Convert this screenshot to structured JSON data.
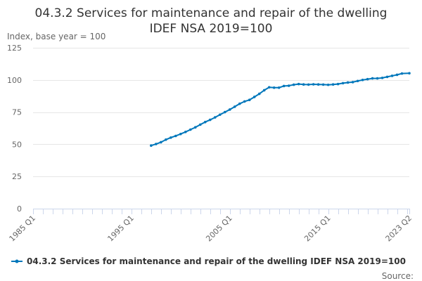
{
  "chart_data": {
    "type": "line",
    "title_line1": "04.3.2 Services for maintenance and repair of the dwelling",
    "title_line2": "IDEF NSA 2019=100",
    "unit_label": "Index, base year = 100",
    "source_label": "Source:",
    "ylim": [
      0,
      125
    ],
    "y_ticks": [
      0,
      25,
      50,
      75,
      100,
      125
    ],
    "x_range": [
      "1985 Q1",
      "2023 Q2"
    ],
    "x_tick_labels": [
      "1985 Q1",
      "1995 Q1",
      "2005 Q1",
      "2015 Q1",
      "2023 Q2"
    ],
    "grid": "horizontal",
    "legend_position": "bottom",
    "color": "#0077bb",
    "series": [
      {
        "name": "04.3.2 Services for maintenance and repair of the dwelling IDEF NSA 2019=100",
        "points": [
          [
            "1997 Q1",
            49.0
          ],
          [
            "1997 Q3",
            50.2
          ],
          [
            "1998 Q1",
            51.6
          ],
          [
            "1998 Q3",
            53.6
          ],
          [
            "1999 Q1",
            55.2
          ],
          [
            "1999 Q3",
            56.5
          ],
          [
            "2000 Q1",
            58.0
          ],
          [
            "2000 Q3",
            59.6
          ],
          [
            "2001 Q1",
            61.4
          ],
          [
            "2001 Q3",
            63.2
          ],
          [
            "2002 Q1",
            65.3
          ],
          [
            "2002 Q3",
            67.3
          ],
          [
            "2003 Q1",
            69.0
          ],
          [
            "2003 Q3",
            70.9
          ],
          [
            "2004 Q1",
            73.0
          ],
          [
            "2004 Q3",
            75.0
          ],
          [
            "2005 Q1",
            77.0
          ],
          [
            "2005 Q3",
            79.2
          ],
          [
            "2006 Q1",
            81.5
          ],
          [
            "2006 Q3",
            83.3
          ],
          [
            "2007 Q1",
            84.5
          ],
          [
            "2007 Q3",
            86.8
          ],
          [
            "2008 Q1",
            89.2
          ],
          [
            "2008 Q3",
            92.0
          ],
          [
            "2009 Q1",
            94.3
          ],
          [
            "2009 Q3",
            94.0
          ],
          [
            "2010 Q1",
            94.0
          ],
          [
            "2010 Q3",
            95.3
          ],
          [
            "2011 Q1",
            95.5
          ],
          [
            "2011 Q3",
            96.3
          ],
          [
            "2012 Q1",
            96.8
          ],
          [
            "2012 Q3",
            96.5
          ],
          [
            "2013 Q1",
            96.4
          ],
          [
            "2013 Q3",
            96.6
          ],
          [
            "2014 Q1",
            96.5
          ],
          [
            "2014 Q3",
            96.4
          ],
          [
            "2015 Q1",
            96.2
          ],
          [
            "2015 Q3",
            96.5
          ],
          [
            "2016 Q1",
            96.8
          ],
          [
            "2016 Q3",
            97.5
          ],
          [
            "2017 Q1",
            98.0
          ],
          [
            "2017 Q3",
            98.3
          ],
          [
            "2018 Q1",
            99.2
          ],
          [
            "2018 Q3",
            100.0
          ],
          [
            "2019 Q1",
            100.6
          ],
          [
            "2019 Q3",
            101.2
          ],
          [
            "2020 Q1",
            101.2
          ],
          [
            "2020 Q3",
            101.6
          ],
          [
            "2021 Q1",
            102.4
          ],
          [
            "2021 Q3",
            103.2
          ],
          [
            "2022 Q1",
            104.0
          ],
          [
            "2022 Q3",
            105.0
          ],
          [
            "2023 Q2",
            105.2
          ]
        ]
      }
    ]
  }
}
